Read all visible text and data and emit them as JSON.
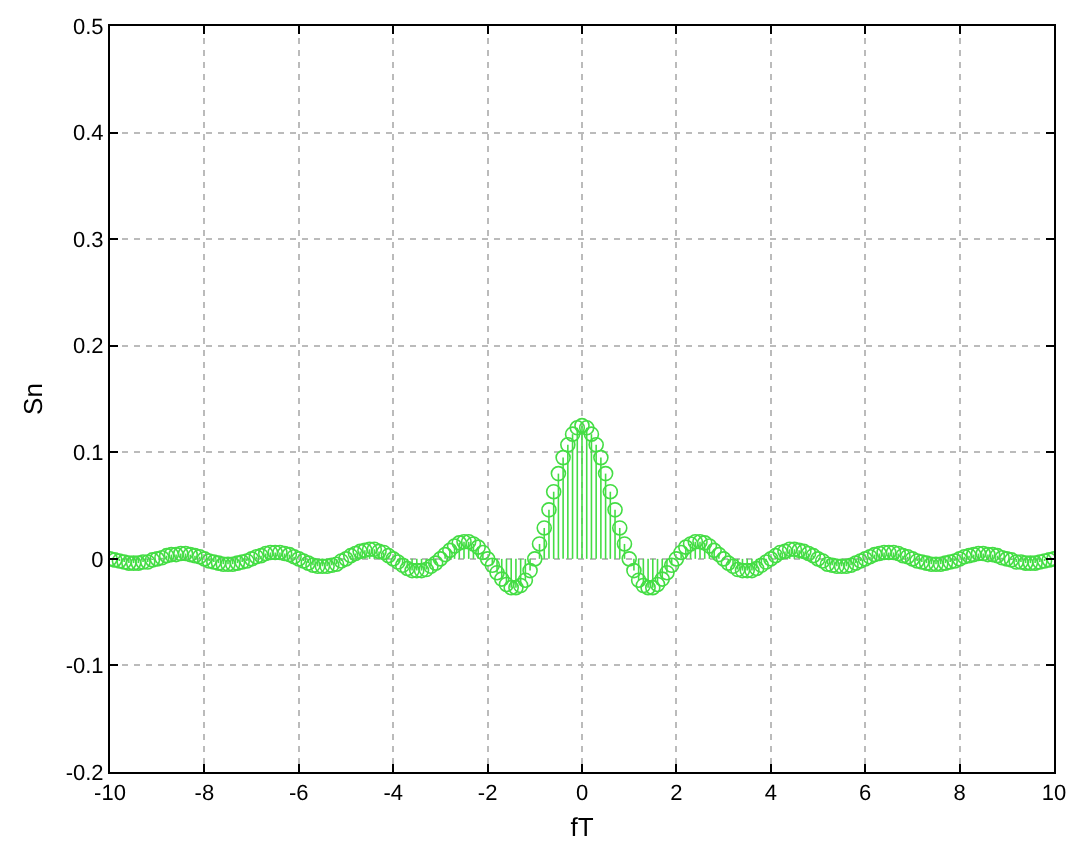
{
  "chart_data": {
    "type": "lollipop",
    "xlabel": "fT",
    "ylabel": "Sn",
    "color": "#44dd44",
    "marker": "circle",
    "grid": true,
    "xlim": [
      -10,
      10
    ],
    "xticks": [
      -10,
      -8,
      -6,
      -4,
      -2,
      0,
      2,
      4,
      6,
      8,
      10
    ],
    "ylim": [
      -0.2,
      0.5
    ],
    "yticks": [
      -0.2,
      -0.1,
      0,
      0.1,
      0.2,
      0.3,
      0.4,
      0.5
    ],
    "x": [
      -10,
      -9.9,
      -9.8,
      -9.7,
      -9.6,
      -9.5,
      -9.4,
      -9.3,
      -9.2,
      -9.1,
      -9,
      -8.9,
      -8.8,
      -8.7,
      -8.6,
      -8.5,
      -8.4,
      -8.3,
      -8.2,
      -8.1,
      -8,
      -7.9,
      -7.8,
      -7.7,
      -7.6,
      -7.5,
      -7.4,
      -7.3,
      -7.2,
      -7.1,
      -7,
      -6.9,
      -6.8,
      -6.7,
      -6.6,
      -6.5,
      -6.4,
      -6.3,
      -6.2,
      -6.1,
      -6,
      -5.9,
      -5.8,
      -5.7,
      -5.6,
      -5.5,
      -5.4,
      -5.3,
      -5.2,
      -5.1,
      -5,
      -4.9,
      -4.8,
      -4.7,
      -4.6,
      -4.5,
      -4.4,
      -4.3,
      -4.2,
      -4.1,
      -4,
      -3.9,
      -3.8,
      -3.7,
      -3.6,
      -3.5,
      -3.4,
      -3.3,
      -3.2,
      -3.1,
      -3,
      -2.9,
      -2.8,
      -2.7,
      -2.6,
      -2.5,
      -2.4,
      -2.3,
      -2.2,
      -2.1,
      -2,
      -1.9,
      -1.8,
      -1.7,
      -1.6,
      -1.5,
      -1.4,
      -1.3,
      -1.2,
      -1.1,
      -1,
      -0.9,
      -0.8,
      -0.7,
      -0.6,
      -0.5,
      -0.4,
      -0.3,
      -0.2,
      -0.1,
      0,
      0.1,
      0.2,
      0.3,
      0.4,
      0.5,
      0.6,
      0.7,
      0.8,
      0.9,
      1,
      1.1,
      1.2,
      1.3,
      1.4,
      1.5,
      1.6,
      1.7,
      1.8,
      1.9,
      2,
      2.1,
      2.2,
      2.3,
      2.4,
      2.5,
      2.6,
      2.7,
      2.8,
      2.9,
      3,
      3.1,
      3.2,
      3.3,
      3.4,
      3.5,
      3.6,
      3.7,
      3.8,
      3.9,
      4,
      4.1,
      4.2,
      4.3,
      4.4,
      4.5,
      4.6,
      4.7,
      4.8,
      4.9,
      5,
      5.1,
      5.2,
      5.3,
      5.4,
      5.5,
      5.6,
      5.7,
      5.8,
      5.9,
      6,
      6.1,
      6.2,
      6.3,
      6.4,
      6.5,
      6.6,
      6.7,
      6.8,
      6.9,
      7,
      7.1,
      7.2,
      7.3,
      7.4,
      7.5,
      7.6,
      7.7,
      7.8,
      7.9,
      8,
      8.1,
      8.2,
      8.3,
      8.4,
      8.5,
      8.6,
      8.7,
      8.8,
      8.9,
      9,
      9.1,
      9.2,
      9.3,
      9.4,
      9.5,
      9.6,
      9.7,
      9.8,
      9.9,
      10
    ],
    "values": [
      0,
      -0.001,
      -0.002,
      -0.003,
      -0.004,
      -0.004,
      -0.004,
      -0.003,
      -0.003,
      -0.001,
      0,
      0.001,
      0.003,
      0.004,
      0.004,
      0.005,
      0.005,
      0.004,
      0.003,
      0.002,
      0,
      -0.002,
      -0.003,
      -0.004,
      -0.005,
      -0.005,
      -0.005,
      -0.004,
      -0.003,
      -0.002,
      0,
      0.002,
      0.003,
      0.005,
      0.006,
      0.006,
      0.006,
      0.005,
      0.004,
      0.002,
      0,
      -0.002,
      -0.004,
      -0.006,
      -0.007,
      -0.007,
      -0.007,
      -0.006,
      -0.005,
      -0.002,
      0,
      0.003,
      0.005,
      0.007,
      0.008,
      0.009,
      0.009,
      0.007,
      0.006,
      0.003,
      0,
      -0.003,
      -0.006,
      -0.009,
      -0.011,
      -0.011,
      -0.011,
      -0.01,
      -0.007,
      -0.004,
      0,
      0.004,
      0.008,
      0.012,
      0.015,
      0.016,
      0.016,
      0.014,
      0.011,
      0.006,
      0,
      -0.006,
      -0.013,
      -0.019,
      -0.024,
      -0.027,
      -0.027,
      -0.025,
      -0.02,
      -0.011,
      0,
      0.014,
      0.029,
      0.046,
      0.063,
      0.08,
      0.095,
      0.107,
      0.117,
      0.123,
      0.125,
      0.123,
      0.117,
      0.107,
      0.095,
      0.08,
      0.063,
      0.046,
      0.029,
      0.014,
      0,
      -0.011,
      -0.02,
      -0.025,
      -0.027,
      -0.027,
      -0.024,
      -0.019,
      -0.013,
      -0.006,
      0,
      0.006,
      0.011,
      0.014,
      0.016,
      0.016,
      0.015,
      0.012,
      0.008,
      0.004,
      0,
      -0.004,
      -0.007,
      -0.01,
      -0.011,
      -0.011,
      -0.011,
      -0.009,
      -0.006,
      -0.003,
      0,
      0.003,
      0.006,
      0.007,
      0.009,
      0.009,
      0.008,
      0.007,
      0.005,
      0.003,
      0,
      -0.002,
      -0.005,
      -0.006,
      -0.007,
      -0.007,
      -0.007,
      -0.006,
      -0.004,
      -0.002,
      0,
      0.002,
      0.004,
      0.005,
      0.006,
      0.006,
      0.006,
      0.005,
      0.003,
      0.002,
      0,
      -0.002,
      -0.003,
      -0.004,
      -0.005,
      -0.005,
      -0.005,
      -0.004,
      -0.003,
      -0.002,
      0,
      0.002,
      0.003,
      0.004,
      0.005,
      0.005,
      0.004,
      0.004,
      0.003,
      0.001,
      0,
      -0.001,
      -0.003,
      -0.003,
      -0.004,
      -0.004,
      -0.004,
      -0.003,
      -0.002,
      -0.001,
      0
    ]
  }
}
